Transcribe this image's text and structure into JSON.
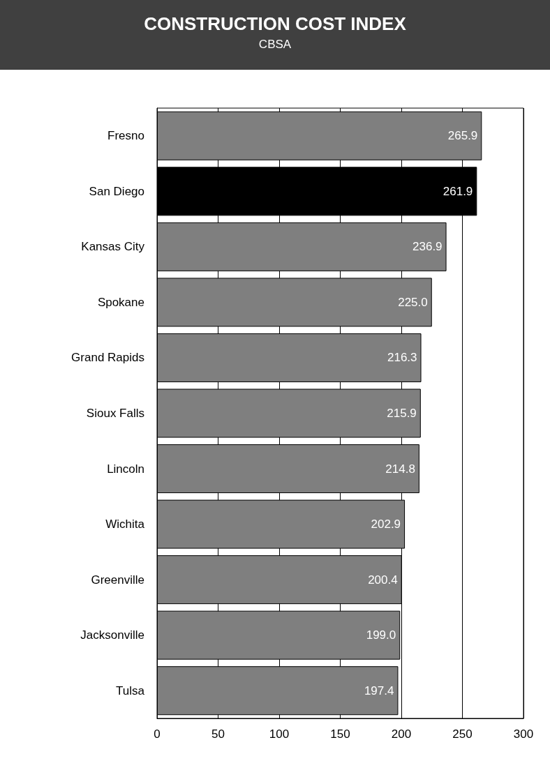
{
  "chart_data": {
    "type": "bar",
    "orientation": "horizontal",
    "title": "CONSTRUCTION COST INDEX",
    "subtitle": "CBSA",
    "categories": [
      "Fresno",
      "San Diego",
      "Kansas City",
      "Spokane",
      "Grand Rapids",
      "Sioux Falls",
      "Lincoln",
      "Wichita",
      "Greenville",
      "Jacksonville",
      "Tulsa"
    ],
    "values": [
      265.9,
      261.9,
      236.9,
      225.0,
      216.3,
      215.9,
      214.8,
      202.9,
      200.4,
      199.0,
      197.4
    ],
    "value_labels": [
      "265.9",
      "261.9",
      "236.9",
      "225.0",
      "216.3",
      "215.9",
      "214.8",
      "202.9",
      "200.4",
      "199.0",
      "197.4"
    ],
    "colors": [
      "#7f7f7f",
      "#000000",
      "#7f7f7f",
      "#7f7f7f",
      "#7f7f7f",
      "#7f7f7f",
      "#7f7f7f",
      "#7f7f7f",
      "#7f7f7f",
      "#7f7f7f",
      "#7f7f7f"
    ],
    "xlim": [
      0,
      300
    ],
    "xticks": [
      0,
      50,
      100,
      150,
      200,
      250,
      300
    ],
    "grid": "x"
  }
}
